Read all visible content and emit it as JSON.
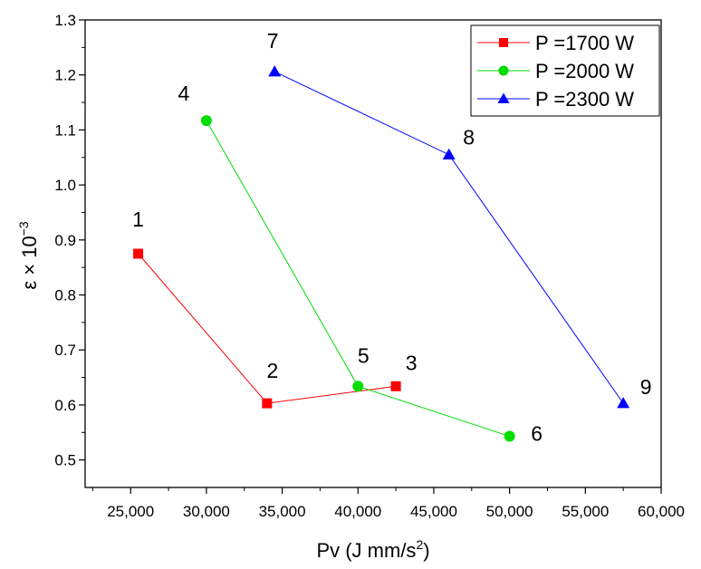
{
  "chart_data": {
    "type": "line",
    "title": "",
    "xlabel": "Pv (J mm/s",
    "xlabel_sup": "2",
    "xlabel_end": ")",
    "ylabel": "ε × 10",
    "ylabel_sup": "−3",
    "xlim": [
      22000,
      60000
    ],
    "ylim": [
      0.45,
      1.3
    ],
    "xticks": [
      25000,
      30000,
      35000,
      40000,
      45000,
      50000,
      55000,
      60000
    ],
    "xtick_labels": [
      "25,000",
      "30,000",
      "35,000",
      "40,000",
      "45,000",
      "50,000",
      "55,000",
      "60,000"
    ],
    "yticks": [
      0.5,
      0.6,
      0.7,
      0.8,
      0.9,
      1.0,
      1.1,
      1.2,
      1.3
    ],
    "ytick_labels": [
      "0.5",
      "0.6",
      "0.7",
      "0.8",
      "0.9",
      "1.0",
      "1.1",
      "1.2",
      "1.3"
    ],
    "grid": false,
    "legend_position": "top-right",
    "series": [
      {
        "name": "P =1700 W",
        "color": "#ff0000",
        "marker": "square",
        "points": [
          {
            "label": "1",
            "x": 25500,
            "y": 0.875
          },
          {
            "label": "2",
            "x": 34000,
            "y": 0.603
          },
          {
            "label": "3",
            "x": 42500,
            "y": 0.634
          }
        ]
      },
      {
        "name": "P =2000 W",
        "color": "#00dd00",
        "marker": "circle",
        "points": [
          {
            "label": "4",
            "x": 30000,
            "y": 1.117
          },
          {
            "label": "5",
            "x": 40000,
            "y": 0.634
          },
          {
            "label": "6",
            "x": 50000,
            "y": 0.543
          }
        ]
      },
      {
        "name": "P =2300 W",
        "color": "#0000ff",
        "marker": "triangle",
        "points": [
          {
            "label": "7",
            "x": 34500,
            "y": 1.206
          },
          {
            "label": "8",
            "x": 46000,
            "y": 1.055
          },
          {
            "label": "9",
            "x": 57500,
            "y": 0.603
          }
        ]
      }
    ]
  }
}
